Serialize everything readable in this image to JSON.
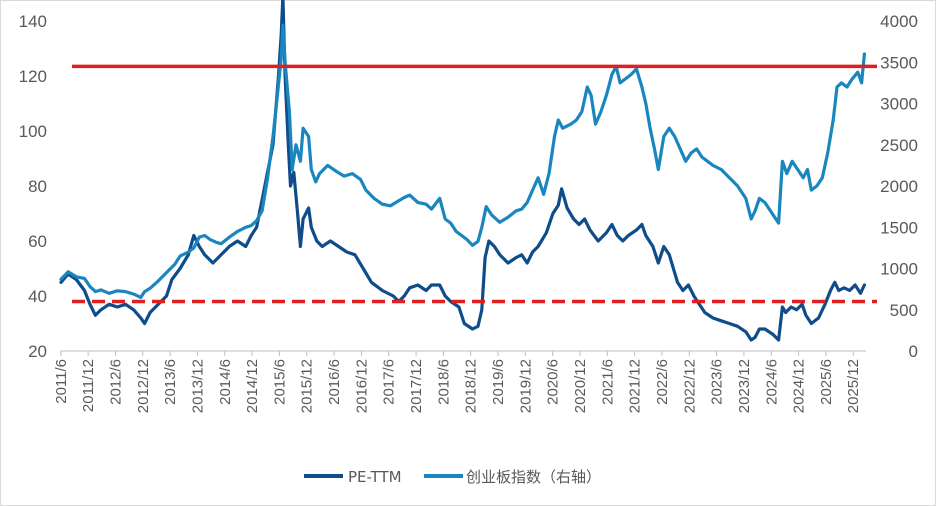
{
  "chart_data": {
    "type": "line",
    "title": "",
    "xlabel": "",
    "ylabel": "",
    "y_left_lim": [
      20,
      140
    ],
    "y_left_ticks": [
      20,
      40,
      60,
      80,
      100,
      120,
      140
    ],
    "y_right_lim": [
      0,
      4000
    ],
    "y_right_ticks": [
      0,
      500,
      1000,
      1500,
      2000,
      2500,
      3000,
      3500,
      4000
    ],
    "x_range": [
      2011.42,
      2026.15
    ],
    "x_tick_labels": [
      "2011/6",
      "2011/12",
      "2012/6",
      "2012/12",
      "2013/6",
      "2013/12",
      "2014/6",
      "2014/12",
      "2015/6",
      "2015/12",
      "2016/6",
      "2016/12",
      "2017/6",
      "2017/12",
      "2018/6",
      "2018/12",
      "2019/6",
      "2019/12",
      "2020/6",
      "2020/12",
      "2021/6",
      "2021/12",
      "2022/6",
      "2022/12",
      "2023/6",
      "2023/12",
      "2024/6",
      "2024/12",
      "2025/6",
      "2025/12"
    ],
    "series": [
      {
        "name": "PE-TTM",
        "axis": "left",
        "color": "#0f4c8a",
        "points": [
          [
            2011.42,
            45
          ],
          [
            2011.55,
            48
          ],
          [
            2011.7,
            46
          ],
          [
            2011.85,
            42
          ],
          [
            2011.95,
            37
          ],
          [
            2012.05,
            33
          ],
          [
            2012.15,
            35
          ],
          [
            2012.3,
            37
          ],
          [
            2012.45,
            36
          ],
          [
            2012.6,
            37
          ],
          [
            2012.75,
            35
          ],
          [
            2012.88,
            32
          ],
          [
            2012.95,
            30
          ],
          [
            2013.05,
            34
          ],
          [
            2013.2,
            37
          ],
          [
            2013.35,
            40
          ],
          [
            2013.45,
            46
          ],
          [
            2013.6,
            50
          ],
          [
            2013.75,
            55
          ],
          [
            2013.85,
            62
          ],
          [
            2013.95,
            58
          ],
          [
            2014.05,
            55
          ],
          [
            2014.2,
            52
          ],
          [
            2014.35,
            55
          ],
          [
            2014.5,
            58
          ],
          [
            2014.65,
            60
          ],
          [
            2014.8,
            58
          ],
          [
            2014.9,
            62
          ],
          [
            2015.0,
            65
          ],
          [
            2015.15,
            80
          ],
          [
            2015.3,
            95
          ],
          [
            2015.4,
            120
          ],
          [
            2015.45,
            135
          ],
          [
            2015.48,
            149
          ],
          [
            2015.52,
            120
          ],
          [
            2015.58,
            95
          ],
          [
            2015.62,
            80
          ],
          [
            2015.68,
            85
          ],
          [
            2015.75,
            70
          ],
          [
            2015.8,
            58
          ],
          [
            2015.85,
            68
          ],
          [
            2015.95,
            72
          ],
          [
            2016.0,
            65
          ],
          [
            2016.1,
            60
          ],
          [
            2016.2,
            58
          ],
          [
            2016.35,
            60
          ],
          [
            2016.5,
            58
          ],
          [
            2016.65,
            56
          ],
          [
            2016.8,
            55
          ],
          [
            2016.95,
            50
          ],
          [
            2017.1,
            45
          ],
          [
            2017.3,
            42
          ],
          [
            2017.5,
            40
          ],
          [
            2017.6,
            38
          ],
          [
            2017.7,
            40
          ],
          [
            2017.8,
            43
          ],
          [
            2017.95,
            44
          ],
          [
            2018.1,
            42
          ],
          [
            2018.2,
            44
          ],
          [
            2018.35,
            44
          ],
          [
            2018.45,
            40
          ],
          [
            2018.55,
            38
          ],
          [
            2018.7,
            36
          ],
          [
            2018.8,
            30
          ],
          [
            2018.95,
            28
          ],
          [
            2019.05,
            29
          ],
          [
            2019.12,
            35
          ],
          [
            2019.18,
            54
          ],
          [
            2019.25,
            60
          ],
          [
            2019.35,
            58
          ],
          [
            2019.45,
            55
          ],
          [
            2019.6,
            52
          ],
          [
            2019.75,
            54
          ],
          [
            2019.85,
            55
          ],
          [
            2019.95,
            52
          ],
          [
            2020.05,
            56
          ],
          [
            2020.15,
            58
          ],
          [
            2020.3,
            63
          ],
          [
            2020.42,
            70
          ],
          [
            2020.52,
            73
          ],
          [
            2020.58,
            79
          ],
          [
            2020.68,
            72
          ],
          [
            2020.8,
            68
          ],
          [
            2020.9,
            66
          ],
          [
            2021.0,
            68
          ],
          [
            2021.1,
            64
          ],
          [
            2021.25,
            60
          ],
          [
            2021.4,
            63
          ],
          [
            2021.5,
            66
          ],
          [
            2021.6,
            62
          ],
          [
            2021.7,
            60
          ],
          [
            2021.8,
            62
          ],
          [
            2021.95,
            64
          ],
          [
            2022.05,
            66
          ],
          [
            2022.12,
            62
          ],
          [
            2022.25,
            58
          ],
          [
            2022.35,
            52
          ],
          [
            2022.45,
            58
          ],
          [
            2022.55,
            55
          ],
          [
            2022.7,
            45
          ],
          [
            2022.8,
            42
          ],
          [
            2022.9,
            44
          ],
          [
            2023.0,
            40
          ],
          [
            2023.1,
            37
          ],
          [
            2023.2,
            34
          ],
          [
            2023.35,
            32
          ],
          [
            2023.5,
            31
          ],
          [
            2023.65,
            30
          ],
          [
            2023.8,
            29
          ],
          [
            2023.95,
            27
          ],
          [
            2024.05,
            24
          ],
          [
            2024.12,
            25
          ],
          [
            2024.2,
            28
          ],
          [
            2024.3,
            28
          ],
          [
            2024.45,
            26
          ],
          [
            2024.55,
            24
          ],
          [
            2024.62,
            36
          ],
          [
            2024.68,
            34
          ],
          [
            2024.78,
            36
          ],
          [
            2024.88,
            35
          ],
          [
            2024.98,
            37
          ],
          [
            2025.05,
            33
          ],
          [
            2025.15,
            30
          ],
          [
            2025.28,
            32
          ],
          [
            2025.4,
            37
          ],
          [
            2025.5,
            42
          ],
          [
            2025.58,
            45
          ],
          [
            2025.65,
            42
          ],
          [
            2025.75,
            43
          ],
          [
            2025.85,
            42
          ],
          [
            2025.95,
            44
          ],
          [
            2026.05,
            41
          ],
          [
            2026.12,
            44
          ]
        ]
      },
      {
        "name": "创业板指数（右轴）",
        "axis": "right",
        "color": "#1a86c0",
        "points": [
          [
            2011.42,
            870
          ],
          [
            2011.55,
            960
          ],
          [
            2011.7,
            900
          ],
          [
            2011.85,
            880
          ],
          [
            2011.95,
            780
          ],
          [
            2012.05,
            720
          ],
          [
            2012.15,
            740
          ],
          [
            2012.3,
            700
          ],
          [
            2012.45,
            730
          ],
          [
            2012.6,
            720
          ],
          [
            2012.75,
            690
          ],
          [
            2012.88,
            650
          ],
          [
            2012.95,
            720
          ],
          [
            2013.05,
            760
          ],
          [
            2013.2,
            850
          ],
          [
            2013.35,
            950
          ],
          [
            2013.5,
            1050
          ],
          [
            2013.6,
            1150
          ],
          [
            2013.75,
            1200
          ],
          [
            2013.85,
            1250
          ],
          [
            2013.95,
            1380
          ],
          [
            2014.05,
            1400
          ],
          [
            2014.15,
            1350
          ],
          [
            2014.25,
            1320
          ],
          [
            2014.35,
            1300
          ],
          [
            2014.5,
            1380
          ],
          [
            2014.65,
            1450
          ],
          [
            2014.8,
            1500
          ],
          [
            2014.9,
            1520
          ],
          [
            2015.0,
            1580
          ],
          [
            2015.1,
            1700
          ],
          [
            2015.2,
            2100
          ],
          [
            2015.3,
            2600
          ],
          [
            2015.38,
            3100
          ],
          [
            2015.45,
            3550
          ],
          [
            2015.48,
            3950
          ],
          [
            2015.52,
            3500
          ],
          [
            2015.6,
            2900
          ],
          [
            2015.65,
            2200
          ],
          [
            2015.72,
            2500
          ],
          [
            2015.8,
            2300
          ],
          [
            2015.85,
            2700
          ],
          [
            2015.95,
            2600
          ],
          [
            2016.0,
            2200
          ],
          [
            2016.08,
            2050
          ],
          [
            2016.15,
            2150
          ],
          [
            2016.3,
            2250
          ],
          [
            2016.45,
            2180
          ],
          [
            2016.6,
            2120
          ],
          [
            2016.75,
            2150
          ],
          [
            2016.9,
            2080
          ],
          [
            2017.0,
            1950
          ],
          [
            2017.15,
            1850
          ],
          [
            2017.3,
            1780
          ],
          [
            2017.45,
            1760
          ],
          [
            2017.6,
            1820
          ],
          [
            2017.7,
            1860
          ],
          [
            2017.8,
            1890
          ],
          [
            2017.95,
            1800
          ],
          [
            2018.1,
            1780
          ],
          [
            2018.2,
            1720
          ],
          [
            2018.35,
            1850
          ],
          [
            2018.45,
            1600
          ],
          [
            2018.55,
            1550
          ],
          [
            2018.65,
            1450
          ],
          [
            2018.75,
            1400
          ],
          [
            2018.85,
            1350
          ],
          [
            2018.95,
            1280
          ],
          [
            2019.05,
            1330
          ],
          [
            2019.12,
            1500
          ],
          [
            2019.2,
            1750
          ],
          [
            2019.3,
            1650
          ],
          [
            2019.45,
            1560
          ],
          [
            2019.6,
            1620
          ],
          [
            2019.75,
            1700
          ],
          [
            2019.85,
            1720
          ],
          [
            2019.95,
            1800
          ],
          [
            2020.05,
            1950
          ],
          [
            2020.15,
            2100
          ],
          [
            2020.25,
            1900
          ],
          [
            2020.35,
            2150
          ],
          [
            2020.45,
            2600
          ],
          [
            2020.52,
            2800
          ],
          [
            2020.6,
            2700
          ],
          [
            2020.75,
            2750
          ],
          [
            2020.85,
            2800
          ],
          [
            2020.95,
            2900
          ],
          [
            2021.05,
            3200
          ],
          [
            2021.12,
            3100
          ],
          [
            2021.2,
            2750
          ],
          [
            2021.3,
            2900
          ],
          [
            2021.4,
            3100
          ],
          [
            2021.5,
            3350
          ],
          [
            2021.58,
            3450
          ],
          [
            2021.65,
            3250
          ],
          [
            2021.75,
            3300
          ],
          [
            2021.85,
            3350
          ],
          [
            2021.95,
            3420
          ],
          [
            2022.05,
            3200
          ],
          [
            2022.12,
            3000
          ],
          [
            2022.2,
            2700
          ],
          [
            2022.28,
            2450
          ],
          [
            2022.35,
            2200
          ],
          [
            2022.45,
            2600
          ],
          [
            2022.55,
            2700
          ],
          [
            2022.65,
            2600
          ],
          [
            2022.75,
            2450
          ],
          [
            2022.85,
            2300
          ],
          [
            2022.95,
            2400
          ],
          [
            2023.05,
            2450
          ],
          [
            2023.15,
            2350
          ],
          [
            2023.25,
            2300
          ],
          [
            2023.35,
            2250
          ],
          [
            2023.5,
            2200
          ],
          [
            2023.65,
            2100
          ],
          [
            2023.8,
            2000
          ],
          [
            2023.95,
            1850
          ],
          [
            2024.05,
            1600
          ],
          [
            2024.12,
            1700
          ],
          [
            2024.2,
            1850
          ],
          [
            2024.3,
            1800
          ],
          [
            2024.45,
            1650
          ],
          [
            2024.55,
            1550
          ],
          [
            2024.62,
            2300
          ],
          [
            2024.7,
            2150
          ],
          [
            2024.8,
            2300
          ],
          [
            2024.9,
            2200
          ],
          [
            2025.0,
            2100
          ],
          [
            2025.08,
            2200
          ],
          [
            2025.15,
            1950
          ],
          [
            2025.25,
            2000
          ],
          [
            2025.35,
            2100
          ],
          [
            2025.45,
            2400
          ],
          [
            2025.55,
            2800
          ],
          [
            2025.62,
            3200
          ],
          [
            2025.7,
            3250
          ],
          [
            2025.8,
            3200
          ],
          [
            2025.9,
            3300
          ],
          [
            2026.0,
            3380
          ],
          [
            2026.07,
            3250
          ],
          [
            2026.12,
            3600
          ]
        ]
      }
    ],
    "reference_lines": [
      {
        "axis": "right",
        "value": 3450,
        "style": "solid",
        "color": "#e02020"
      },
      {
        "axis": "left",
        "value": 38,
        "style": "dashed",
        "color": "#e02020"
      }
    ],
    "legend": {
      "position": "bottom-center",
      "entries": [
        "PE-TTM",
        "创业板指数（右轴）"
      ]
    }
  }
}
